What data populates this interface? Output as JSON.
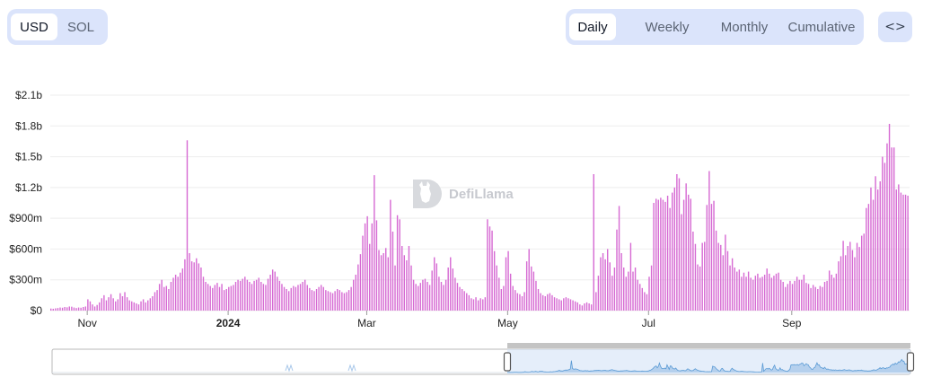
{
  "currency": {
    "options": [
      "USD",
      "SOL"
    ],
    "selected": "USD"
  },
  "period": {
    "options": [
      "Daily",
      "Weekly",
      "Monthly",
      "Cumulative"
    ],
    "selected": "Daily"
  },
  "embed": {
    "icon": "code-icon",
    "glyph": "<>"
  },
  "watermark": {
    "text": "DefiLlama",
    "icon": "llama-logo-icon"
  },
  "colors": {
    "bar": "#d66ad3",
    "toggle_bg": "#dbe4fb",
    "brush_fill": "#cfe0f5",
    "brush_line": "#5b9bd5"
  },
  "chart_data": {
    "type": "bar",
    "unit": "USD",
    "y_ticks": [
      "$0",
      "$300m",
      "$600m",
      "$900m",
      "$1.2b",
      "$1.5b",
      "$1.8b",
      "$2.1b"
    ],
    "x_ticks": [
      "Nov",
      "2024",
      "Mar",
      "May",
      "Jul",
      "Sep"
    ],
    "ylim": [
      0,
      2100000000
    ],
    "grid": true,
    "series": [
      {
        "name": "",
        "segments": [
          {
            "from": "2023-10-16",
            "to": "2023-10-31",
            "values": [
              20,
              18,
              22,
              25,
              30,
              28,
              35,
              32,
              40,
              38,
              30,
              25,
              30,
              28,
              35,
              40
            ]
          },
          {
            "from": "2023-11-01",
            "to": "2023-11-30",
            "values": [
              110,
              90,
              60,
              40,
              55,
              80,
              120,
              150,
              100,
              130,
              160,
              120,
              90,
              110,
              170,
              140,
              180,
              130,
              100,
              90,
              80,
              70,
              60,
              90,
              110,
              80,
              100,
              120,
              140,
              180
            ]
          },
          {
            "from": "2023-12-01",
            "to": "2023-12-31",
            "values": [
              200,
              260,
              300,
              230,
              240,
              210,
              280,
              320,
              350,
              330,
              370,
              410,
              500,
              1660,
              560,
              480,
              470,
              510,
              460,
              420,
              330,
              280,
              260,
              240,
              220,
              250,
              270,
              230,
              260,
              200,
              210
            ]
          },
          {
            "from": "2024-01-01",
            "to": "2024-01-31",
            "values": [
              230,
              240,
              250,
              280,
              300,
              290,
              310,
              330,
              300,
              280,
              260,
              290,
              300,
              320,
              280,
              260,
              250,
              310,
              350,
              400,
              380,
              330,
              290,
              260,
              230,
              210,
              190,
              220,
              240,
              230,
              250
            ]
          },
          {
            "from": "2024-02-01",
            "to": "2024-02-29",
            "values": [
              260,
              280,
              300,
              250,
              220,
              200,
              190,
              210,
              230,
              250,
              230,
              200,
              190,
              180,
              170,
              190,
              210,
              200,
              180,
              170,
              180,
              200,
              230,
              300,
              350,
              450,
              550,
              730,
              850
            ]
          },
          {
            "from": "2024-03-01",
            "to": "2024-03-31",
            "values": [
              920,
              650,
              850,
              1320,
              880,
              590,
              540,
              560,
              610,
              520,
              1080,
              770,
              440,
              930,
              890,
              630,
              540,
              490,
              630,
              440,
              300,
              260,
              240,
              270,
              300,
              310,
              280,
              250,
              390,
              520,
              460
            ]
          },
          {
            "from": "2024-04-01",
            "to": "2024-04-30",
            "values": [
              330,
              280,
              250,
              300,
              420,
              520,
              410,
              320,
              270,
              230,
              210,
              190,
              170,
              150,
              120,
              110,
              130,
              100,
              120,
              110,
              130,
              890,
              820,
              780,
              580,
              440,
              320,
              210,
              240,
              520
            ]
          },
          {
            "from": "2024-05-01",
            "to": "2024-05-31",
            "values": [
              580,
              360,
              240,
              200,
              170,
              160,
              140,
              180,
              480,
              600,
              430,
              380,
              290,
              210,
              170,
              150,
              140,
              160,
              170,
              150,
              130,
              120,
              110,
              100,
              120,
              130,
              120,
              110,
              100,
              90,
              80
            ]
          },
          {
            "from": "2024-06-01",
            "to": "2024-06-30",
            "values": [
              60,
              50,
              70,
              80,
              70,
              60,
              1330,
              180,
              340,
              520,
              560,
              500,
              600,
              470,
              340,
              420,
              790,
              1020,
              560,
              420,
              330,
              380,
              660,
              380,
              420,
              300,
              260,
              220,
              180,
              160
            ]
          },
          {
            "from": "2024-07-01",
            "to": "2024-07-31",
            "values": [
              330,
              440,
              1050,
              1090,
              1080,
              1100,
              1080,
              1060,
              1120,
              1000,
              1150,
              1200,
              1330,
              1290,
              940,
              1080,
              1240,
              1130,
              1090,
              770,
              650,
              450,
              430,
              660,
              670,
              1030,
              1360,
              1040,
              1070,
              780,
              660
            ]
          },
          {
            "from": "2024-08-01",
            "to": "2024-08-31",
            "values": [
              640,
              540,
              740,
              580,
              440,
              510,
              420,
              380,
              400,
              330,
              370,
              330,
              380,
              320,
              300,
              340,
              360,
              320,
              330,
              350,
              410,
              360,
              320,
              340,
              360,
              370,
              300,
              280,
              230,
              260,
              290
            ]
          },
          {
            "from": "2024-09-01",
            "to": "2024-09-30",
            "values": [
              260,
              290,
              330,
              300,
              300,
              350,
              270,
              260,
              220,
              250,
              230,
              210,
              240,
              230,
              280,
              290,
              390,
              350,
              320,
              360,
              480,
              530,
              680,
              540,
              630,
              670,
              590,
              520,
              660,
              620
            ]
          },
          {
            "from": "2024-10-01",
            "to": "2024-10-21",
            "values": [
              730,
              750,
              1000,
              1040,
              1200,
              1080,
              1310,
              1180,
              1260,
              1500,
              1440,
              1630,
              1820,
              1590,
              1590,
              1180,
              1230,
              1150,
              1130,
              1130,
              1120
            ]
          }
        ],
        "values_unit": "millions USD"
      }
    ],
    "range_brush": {
      "selected_from": "2023-10-16",
      "selected_to": "2024-10-21",
      "shown": "overview of full history; recent portion selected"
    }
  }
}
